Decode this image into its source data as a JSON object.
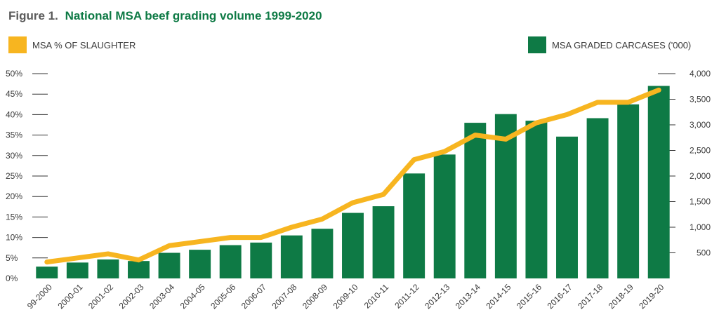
{
  "title": {
    "prefix": "Figure 1.",
    "main": "National MSA beef grading volume 1999-2020"
  },
  "legend": {
    "line_label": "MSA % OF SLAUGHTER",
    "bar_label": "MSA GRADED CARCASES ('000)"
  },
  "colors": {
    "bar": "#0e7a45",
    "line": "#f7b520",
    "title_green": "#0e7a45",
    "axis_text": "#3a3a3a"
  },
  "chart_data": {
    "type": "bar",
    "categories": [
      "99-2000",
      "2000-01",
      "2001-02",
      "2002-03",
      "2003-04",
      "2004-05",
      "2005-06",
      "2006-07",
      "2007-08",
      "2008-09",
      "2009-10",
      "2010-11",
      "2011-12",
      "2012-13",
      "2013-14",
      "2014-15",
      "2015-16",
      "2016-17",
      "2017-18",
      "2018-19",
      "2019-20"
    ],
    "series": [
      {
        "name": "MSA GRADED CARCASES ('000)",
        "type": "bar",
        "axis": "right",
        "values": [
          230,
          310,
          370,
          340,
          500,
          560,
          650,
          700,
          840,
          970,
          1280,
          1410,
          2050,
          2420,
          3040,
          3210,
          3080,
          2770,
          3130,
          3400,
          3760
        ]
      },
      {
        "name": "MSA % OF SLAUGHTER",
        "type": "line",
        "axis": "left",
        "values": [
          4,
          5,
          6,
          4.5,
          8,
          9,
          10,
          10,
          12.5,
          14.5,
          18.5,
          20.5,
          29,
          31,
          35,
          34,
          38,
          40,
          43,
          43,
          46
        ]
      }
    ],
    "y_left": {
      "ticks": [
        "0%",
        "5%",
        "10%",
        "15%",
        "20%",
        "25%",
        "30%",
        "35%",
        "40%",
        "45%",
        "50%"
      ],
      "range": [
        0,
        50
      ]
    },
    "y_right": {
      "ticks": [
        "500",
        "1,000",
        "1,500",
        "2,000",
        "2,500",
        "3,000",
        "3,500",
        "4,000"
      ],
      "tick_values": [
        500,
        1000,
        1500,
        2000,
        2500,
        3000,
        3500,
        4000
      ],
      "range": [
        0,
        4000
      ]
    }
  }
}
